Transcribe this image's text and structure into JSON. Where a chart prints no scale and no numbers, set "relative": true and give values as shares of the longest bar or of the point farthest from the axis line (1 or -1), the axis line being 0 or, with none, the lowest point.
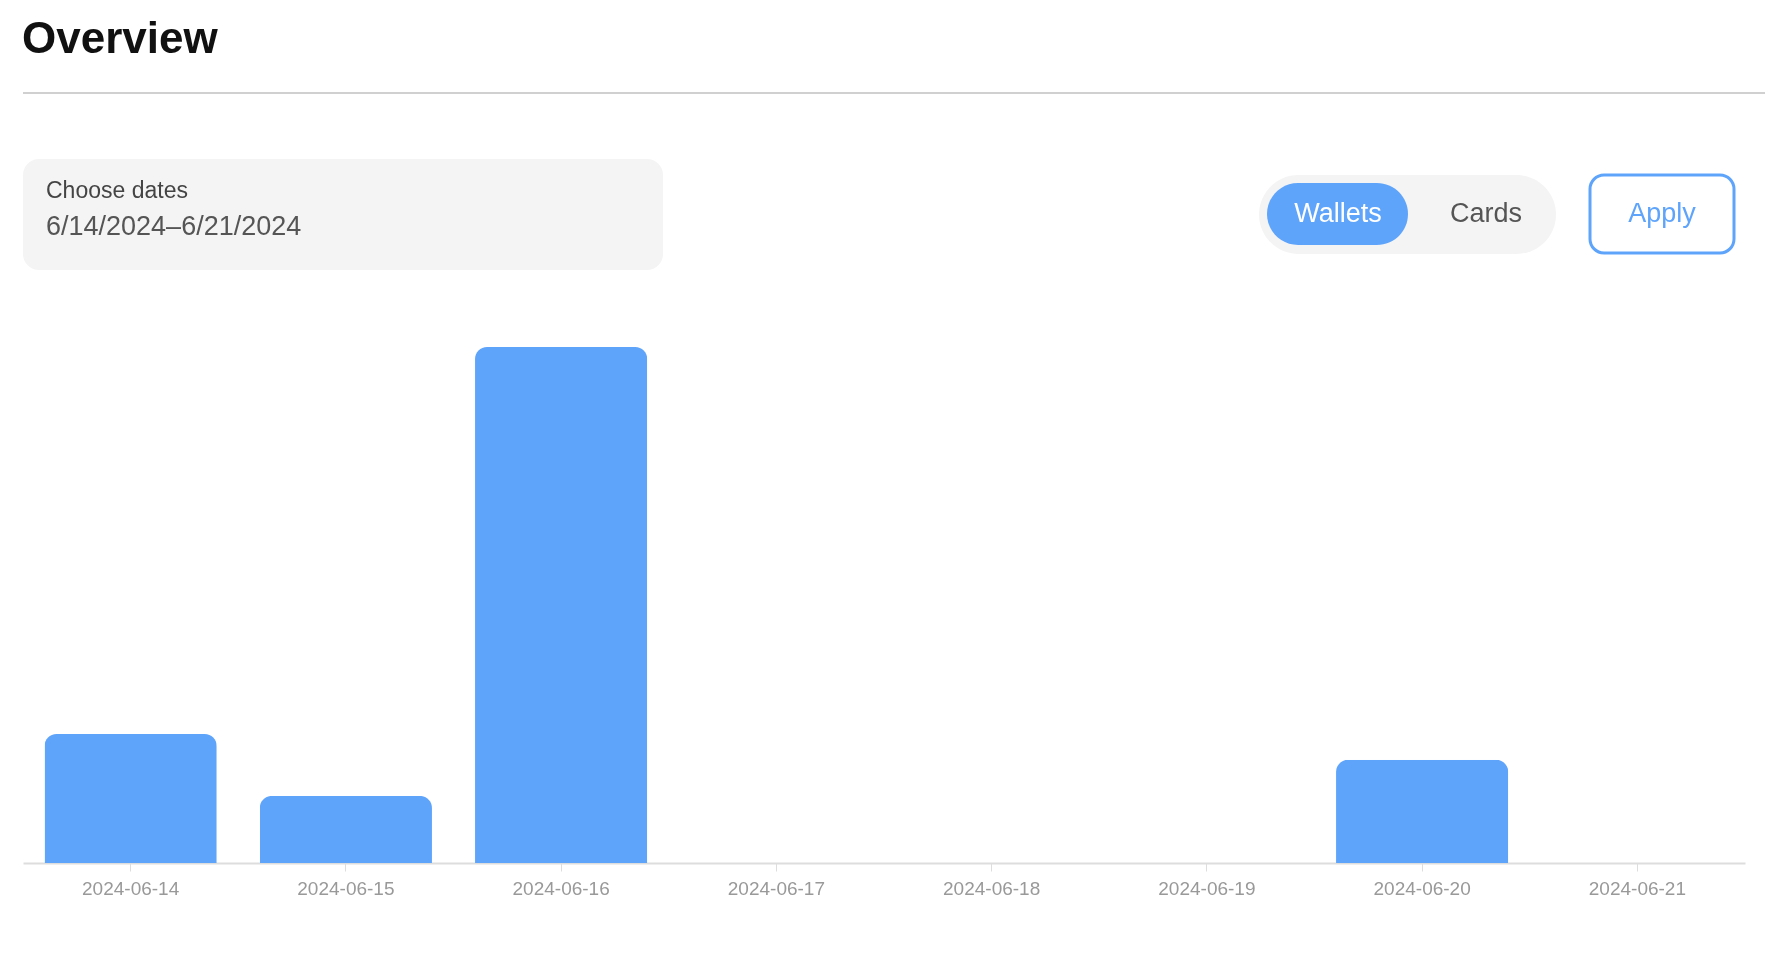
{
  "chart_data": {
    "type": "bar",
    "title": "Overview",
    "categories": [
      "2024-06-14",
      "2024-06-15",
      "2024-06-16",
      "2024-06-17",
      "2024-06-18",
      "2024-06-19",
      "2024-06-20",
      "2024-06-21"
    ],
    "values": [
      0.25,
      0.13,
      1,
      0,
      0,
      0,
      0.2,
      0
    ],
    "color": "#5fa4fb",
    "relative": true,
    "annotations": [
      "Choose dates",
      "6/14/2024–6/21/2024",
      "Wallets",
      "Cards",
      "Apply"
    ]
  }
}
